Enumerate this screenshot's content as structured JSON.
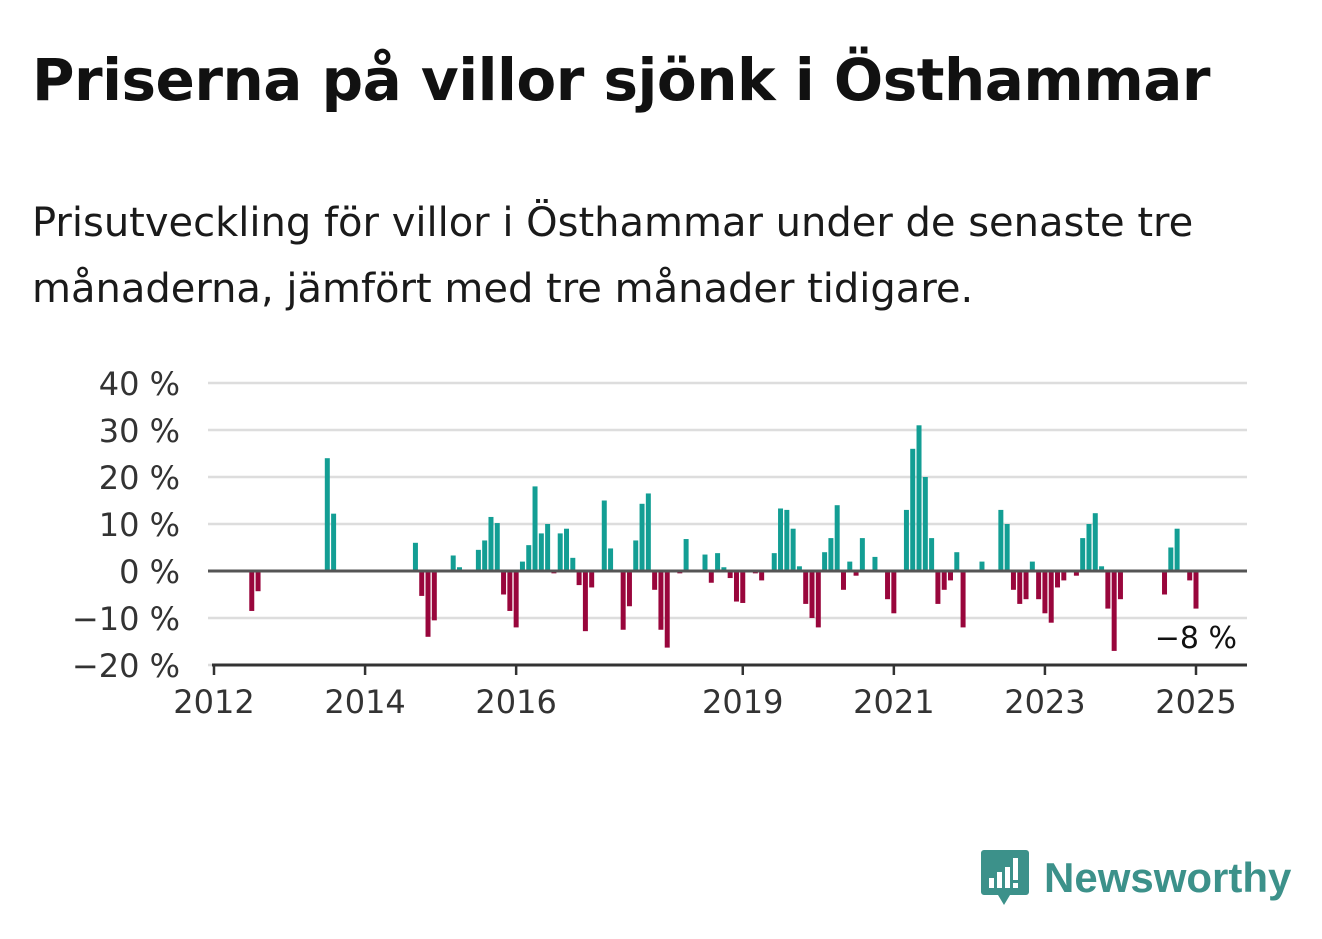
{
  "title": "Priserna på villor sjönk i Östhammar",
  "subtitle": "Prisutveckling för villor i Östhammar under de senaste tre månaderna, jämfört med tre månader tidigare.",
  "brand": {
    "name": "Newsworthy",
    "icon": "newsworthy-logo-icon"
  },
  "colors": {
    "positive": "#139e94",
    "negative": "#99063c",
    "grid": "#dddddd",
    "zero_line": "#555555"
  },
  "chart_data": {
    "type": "bar",
    "title": "Priserna på villor sjönk i Östhammar",
    "subtitle": "Prisutveckling för villor i Östhammar under de senaste tre månaderna, jämfört med tre månader tidigare.",
    "xlabel": "",
    "ylabel": "",
    "ylim": [
      -20,
      40
    ],
    "y_ticks": [
      40,
      30,
      20,
      10,
      0,
      -10,
      -20
    ],
    "y_tick_labels": [
      "40 %",
      "30 %",
      "20 %",
      "10 %",
      "0 %",
      "−10 %",
      "−20 %"
    ],
    "x_ticks": [
      2012,
      2014,
      2016,
      2019,
      2021,
      2023,
      2025
    ],
    "x_tick_labels": [
      "2012",
      "2014",
      "2016",
      "2019",
      "2021",
      "2023",
      "2025"
    ],
    "grid": true,
    "end_label": "−8 %",
    "series": [
      {
        "values": [
          {
            "date": "2012-07",
            "value": -8.5
          },
          {
            "date": "2012-08",
            "value": -4.3
          },
          {
            "date": "2013-07",
            "value": 24.0
          },
          {
            "date": "2013-08",
            "value": 12.2
          },
          {
            "date": "2014-09",
            "value": 6.0
          },
          {
            "date": "2014-10",
            "value": -5.3
          },
          {
            "date": "2014-11",
            "value": -14.0
          },
          {
            "date": "2014-12",
            "value": -10.5
          },
          {
            "date": "2015-03",
            "value": 3.3
          },
          {
            "date": "2015-04",
            "value": 0.8
          },
          {
            "date": "2015-07",
            "value": 4.5
          },
          {
            "date": "2015-08",
            "value": 6.5
          },
          {
            "date": "2015-09",
            "value": 11.5
          },
          {
            "date": "2015-10",
            "value": 10.2
          },
          {
            "date": "2015-11",
            "value": -5.0
          },
          {
            "date": "2015-12",
            "value": -8.5
          },
          {
            "date": "2016-01",
            "value": -12.0
          },
          {
            "date": "2016-02",
            "value": 2.0
          },
          {
            "date": "2016-03",
            "value": 5.5
          },
          {
            "date": "2016-04",
            "value": 18.0
          },
          {
            "date": "2016-05",
            "value": 8.0
          },
          {
            "date": "2016-06",
            "value": 10.0
          },
          {
            "date": "2016-07",
            "value": -0.5
          },
          {
            "date": "2016-08",
            "value": 8.0
          },
          {
            "date": "2016-09",
            "value": 9.0
          },
          {
            "date": "2016-10",
            "value": 2.8
          },
          {
            "date": "2016-11",
            "value": -3.0
          },
          {
            "date": "2016-12",
            "value": -12.8
          },
          {
            "date": "2017-01",
            "value": -3.5
          },
          {
            "date": "2017-03",
            "value": 15.0
          },
          {
            "date": "2017-04",
            "value": 4.8
          },
          {
            "date": "2017-06",
            "value": -12.5
          },
          {
            "date": "2017-07",
            "value": -7.5
          },
          {
            "date": "2017-08",
            "value": 6.5
          },
          {
            "date": "2017-09",
            "value": 14.3
          },
          {
            "date": "2017-10",
            "value": 16.5
          },
          {
            "date": "2017-11",
            "value": -4.0
          },
          {
            "date": "2017-12",
            "value": -12.5
          },
          {
            "date": "2018-01",
            "value": -16.3
          },
          {
            "date": "2018-03",
            "value": -0.5
          },
          {
            "date": "2018-04",
            "value": 6.8
          },
          {
            "date": "2018-07",
            "value": 3.5
          },
          {
            "date": "2018-08",
            "value": -2.5
          },
          {
            "date": "2018-09",
            "value": 3.8
          },
          {
            "date": "2018-10",
            "value": 0.8
          },
          {
            "date": "2018-11",
            "value": -1.5
          },
          {
            "date": "2018-12",
            "value": -6.5
          },
          {
            "date": "2019-01",
            "value": -6.8
          },
          {
            "date": "2019-03",
            "value": -0.5
          },
          {
            "date": "2019-04",
            "value": -2.0
          },
          {
            "date": "2019-06",
            "value": 3.8
          },
          {
            "date": "2019-07",
            "value": 13.3
          },
          {
            "date": "2019-08",
            "value": 13.0
          },
          {
            "date": "2019-09",
            "value": 9.0
          },
          {
            "date": "2019-10",
            "value": 1.0
          },
          {
            "date": "2019-11",
            "value": -7.0
          },
          {
            "date": "2019-12",
            "value": -10.0
          },
          {
            "date": "2020-01",
            "value": -12.0
          },
          {
            "date": "2020-02",
            "value": 4.0
          },
          {
            "date": "2020-03",
            "value": 7.0
          },
          {
            "date": "2020-04",
            "value": 14.0
          },
          {
            "date": "2020-05",
            "value": -4.0
          },
          {
            "date": "2020-06",
            "value": 2.0
          },
          {
            "date": "2020-07",
            "value": -1.0
          },
          {
            "date": "2020-08",
            "value": 7.0
          },
          {
            "date": "2020-10",
            "value": 3.0
          },
          {
            "date": "2020-12",
            "value": -6.0
          },
          {
            "date": "2021-01",
            "value": -9.0
          },
          {
            "date": "2021-03",
            "value": 13.0
          },
          {
            "date": "2021-04",
            "value": 26.0
          },
          {
            "date": "2021-05",
            "value": 31.0
          },
          {
            "date": "2021-06",
            "value": 20.0
          },
          {
            "date": "2021-07",
            "value": 7.0
          },
          {
            "date": "2021-08",
            "value": -7.0
          },
          {
            "date": "2021-09",
            "value": -4.0
          },
          {
            "date": "2021-10",
            "value": -2.0
          },
          {
            "date": "2021-11",
            "value": 4.0
          },
          {
            "date": "2021-12",
            "value": -12.0
          },
          {
            "date": "2022-03",
            "value": 2.0
          },
          {
            "date": "2022-06",
            "value": 13.0
          },
          {
            "date": "2022-07",
            "value": 10.0
          },
          {
            "date": "2022-08",
            "value": -4.0
          },
          {
            "date": "2022-09",
            "value": -7.0
          },
          {
            "date": "2022-10",
            "value": -6.0
          },
          {
            "date": "2022-11",
            "value": 2.0
          },
          {
            "date": "2022-12",
            "value": -6.0
          },
          {
            "date": "2023-01",
            "value": -9.0
          },
          {
            "date": "2023-02",
            "value": -11.0
          },
          {
            "date": "2023-03",
            "value": -3.5
          },
          {
            "date": "2023-04",
            "value": -2.0
          },
          {
            "date": "2023-06",
            "value": -1.0
          },
          {
            "date": "2023-07",
            "value": 7.0
          },
          {
            "date": "2023-08",
            "value": 10.0
          },
          {
            "date": "2023-09",
            "value": 12.3
          },
          {
            "date": "2023-10",
            "value": 1.0
          },
          {
            "date": "2023-11",
            "value": -8.0
          },
          {
            "date": "2023-12",
            "value": -17.0
          },
          {
            "date": "2024-01",
            "value": -6.0
          },
          {
            "date": "2024-08",
            "value": -5.0
          },
          {
            "date": "2024-09",
            "value": 5.0
          },
          {
            "date": "2024-10",
            "value": 9.0
          },
          {
            "date": "2024-12",
            "value": -2.0
          },
          {
            "date": "2025-01",
            "value": -8.0
          }
        ]
      }
    ]
  }
}
